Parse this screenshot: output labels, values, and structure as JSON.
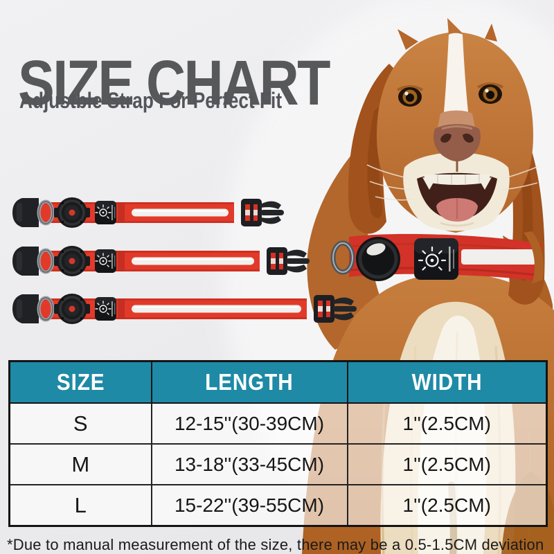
{
  "page": {
    "title": "SIZE CHART",
    "subtitle": "Adjustble Strap For Perfect Fit",
    "footnote": "*Due to manual measurement of the size, there may be a 0.5-1.5CM deviation"
  },
  "size_table": {
    "columns": [
      "SIZE",
      "LENGTH",
      "WIDTH"
    ],
    "rows": [
      {
        "size": "S",
        "length": "12-15''(30-39CM)",
        "width": "1''(2.5CM)"
      },
      {
        "size": "M",
        "length": "13-18''(33-45CM)",
        "width": "1''(2.5CM)"
      },
      {
        "size": "L",
        "length": "15-22''(39-55CM)",
        "width": "1''(2.5CM)"
      }
    ]
  },
  "illustration": {
    "dog": "dog-wearing-red-led-tracker-collar",
    "collar_samples": [
      {
        "relative_length": "short"
      },
      {
        "relative_length": "medium"
      },
      {
        "relative_length": "long"
      }
    ],
    "icons": {
      "led_unit": "light-bulb-icon",
      "tracker_case": "round-tracker-case-icon",
      "d_ring": "metal-d-ring-icon",
      "buckle": "side-release-buckle-icon",
      "reflective_stripe": "reflective-stripe"
    }
  },
  "colors": {
    "table_header_teal": "#1e8aa6",
    "collar_red": "#e23a2a",
    "title_gray": "#58585a",
    "dog_fur": "#bd7236"
  }
}
